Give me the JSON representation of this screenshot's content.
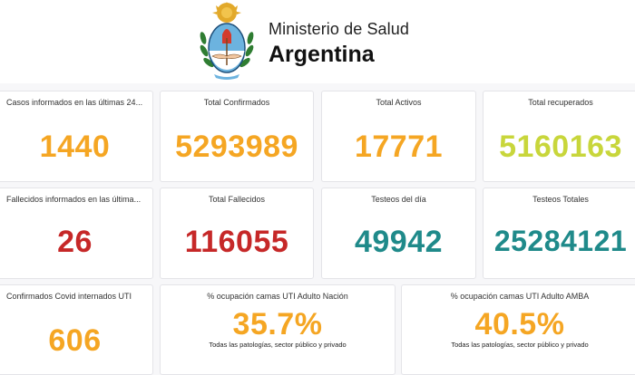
{
  "header": {
    "ministry_line1": "Ministerio de Salud",
    "ministry_line2": "Argentina"
  },
  "colors": {
    "orange": "#f5a623",
    "lime": "#c8d63b",
    "red": "#c62828",
    "teal": "#1f8a8a"
  },
  "row1": [
    {
      "title": "Casos informados en las últimas 24...",
      "value": "1440"
    },
    {
      "title": "Total Confirmados",
      "value": "5293989"
    },
    {
      "title": "Total Activos",
      "value": "17771"
    },
    {
      "title": "Total recuperados",
      "value": "5160163"
    }
  ],
  "row2": [
    {
      "title": "Fallecidos informados en las última...",
      "value": "26"
    },
    {
      "title": "Total Fallecidos",
      "value": "116055"
    },
    {
      "title": "Testeos del día",
      "value": "49942"
    },
    {
      "title": "Testeos Totales",
      "value": "25284121"
    }
  ],
  "row3": [
    {
      "title": "Confirmados Covid internados UTI",
      "value": "606"
    },
    {
      "title": "% ocupación camas UTI Adulto Nación",
      "value": "35.7%",
      "subtitle": "Todas las patologías, sector público y privado"
    },
    {
      "title": "% ocupación camas UTI Adulto AMBA",
      "value": "40.5%",
      "subtitle": "Todas las patologías, sector público y privado"
    }
  ]
}
